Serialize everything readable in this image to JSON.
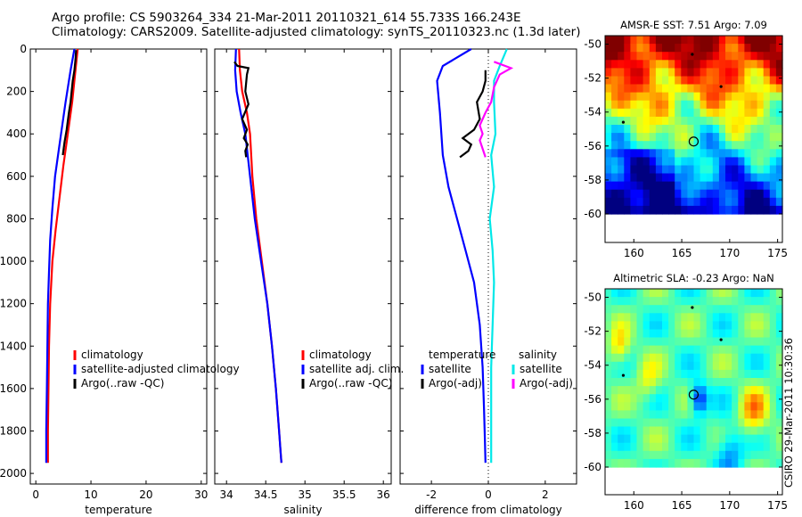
{
  "header": {
    "line1": "Argo profile: CS 5903264_334 21-Mar-2011 20110321_614 55.733S 166.243E",
    "line2": "Climatology: CARS2009. Satellite-adjusted climatology: synTS_20110323.nc (1.3d later)"
  },
  "side_text": "CSIRO 29-Mar-2011 10:30:36",
  "chart_data": [
    {
      "type": "line",
      "id": "temperature",
      "xlabel": "temperature",
      "xlim": [
        -1,
        31
      ],
      "ylim": [
        2050,
        0
      ],
      "xticks": [
        0,
        10,
        20,
        30
      ],
      "yticks": [
        0,
        200,
        400,
        600,
        800,
        1000,
        1200,
        1400,
        1600,
        1800,
        2000
      ],
      "legend": [
        "climatology",
        "satellite-adjusted climatology",
        "Argo(..raw -QC)"
      ],
      "series": [
        {
          "name": "climatology",
          "color": "#ff0000",
          "x": [
            7.6,
            7.2,
            6.6,
            5.8,
            5.0,
            4.3,
            3.6,
            3.0,
            2.6,
            2.4,
            2.3,
            2.2,
            2.2
          ],
          "y": [
            0,
            100,
            250,
            400,
            550,
            700,
            850,
            1000,
            1200,
            1400,
            1600,
            1800,
            1950
          ]
        },
        {
          "name": "satellite-adjusted climatology",
          "color": "#0000ff",
          "x": [
            7.0,
            6.3,
            5.4,
            4.3,
            3.5,
            3.0,
            2.6,
            2.4,
            2.2,
            2.1,
            2.0,
            1.9,
            1.9
          ],
          "y": [
            0,
            100,
            250,
            450,
            600,
            750,
            900,
            1050,
            1200,
            1400,
            1600,
            1800,
            1950
          ]
        },
        {
          "name": "Argo(..raw -QC)",
          "color": "#000000",
          "x": [
            7.3,
            7.2,
            7.0,
            6.7,
            6.3,
            6.0,
            5.6,
            5.2,
            4.9
          ],
          "y": [
            5,
            50,
            100,
            150,
            250,
            300,
            380,
            440,
            500
          ]
        }
      ]
    },
    {
      "type": "line",
      "id": "salinity",
      "xlabel": "salinity",
      "xlim": [
        33.85,
        36.1
      ],
      "ylim": [
        2050,
        0
      ],
      "xticks": [
        34,
        34.5,
        35,
        35.5,
        36
      ],
      "legend": [
        "climatology",
        "satellite adj. clim.",
        "Argo(..raw -QC)"
      ],
      "series": [
        {
          "name": "climatology",
          "color": "#ff0000",
          "x": [
            34.16,
            34.17,
            34.2,
            34.26,
            34.3,
            34.33,
            34.38,
            34.45,
            34.52,
            34.58,
            34.63,
            34.67,
            34.69,
            34.7
          ],
          "y": [
            0,
            100,
            200,
            300,
            400,
            600,
            800,
            1000,
            1200,
            1400,
            1600,
            1800,
            1900,
            1950
          ]
        },
        {
          "name": "satellite adj. clim.",
          "color": "#0000ff",
          "x": [
            34.12,
            34.11,
            34.13,
            34.18,
            34.24,
            34.3,
            34.36,
            34.44,
            34.52,
            34.58,
            34.63,
            34.67,
            34.69,
            34.7
          ],
          "y": [
            0,
            100,
            200,
            300,
            400,
            600,
            800,
            1000,
            1200,
            1400,
            1600,
            1800,
            1900,
            1950
          ]
        },
        {
          "name": "Argo(..raw -QC)",
          "color": "#000000",
          "x": [
            34.1,
            34.14,
            34.28,
            34.26,
            34.24,
            34.28,
            34.2,
            34.26,
            34.22,
            34.27,
            34.24,
            34.25
          ],
          "y": [
            60,
            80,
            90,
            120,
            200,
            260,
            330,
            380,
            420,
            450,
            480,
            510
          ]
        }
      ]
    },
    {
      "type": "line",
      "id": "difference",
      "xlabel": "difference from climatology",
      "xlim": [
        -3.1,
        3.1
      ],
      "ylim": [
        2050,
        0
      ],
      "xticks": [
        -2,
        0,
        2
      ],
      "legend": [
        "temperature",
        "satellite",
        "Argo(-adj)",
        "salinity",
        "satellite",
        "Argo(-adj)"
      ],
      "series": [
        {
          "name": "temperature satellite",
          "color": "#0000ff",
          "x": [
            -0.6,
            -1.6,
            -1.8,
            -1.7,
            -1.6,
            -1.4,
            -1.1,
            -0.8,
            -0.5,
            -0.3,
            -0.2,
            -0.15,
            -0.12,
            -0.1
          ],
          "y": [
            0,
            80,
            150,
            300,
            500,
            650,
            800,
            950,
            1100,
            1300,
            1500,
            1700,
            1850,
            1950
          ]
        },
        {
          "name": "temperature Argo(-adj)",
          "color": "#000000",
          "x": [
            -0.1,
            -0.1,
            -0.2,
            -0.4,
            -0.3,
            -0.5,
            -0.9,
            -0.6,
            -0.7,
            -1.0
          ],
          "y": [
            100,
            150,
            200,
            250,
            330,
            380,
            420,
            450,
            480,
            510
          ]
        },
        {
          "name": "salinity satellite",
          "color": "#00e8e8",
          "x": [
            0.65,
            0.4,
            0.2,
            0.2,
            0.25,
            0.1,
            0.2,
            0.05,
            0.15,
            0.2,
            0.15,
            0.1,
            0.1,
            0.1
          ],
          "y": [
            0,
            80,
            150,
            250,
            400,
            500,
            650,
            800,
            950,
            1100,
            1300,
            1500,
            1700,
            1950
          ]
        },
        {
          "name": "salinity Argo(-adj)",
          "color": "#ff00ff",
          "x": [
            0.2,
            0.8,
            0.4,
            0.2,
            0.1,
            -0.1,
            -0.3,
            -0.2,
            -0.3,
            -0.2,
            -0.1
          ],
          "y": [
            60,
            90,
            120,
            180,
            250,
            300,
            360,
            400,
            430,
            470,
            510
          ]
        }
      ]
    },
    {
      "type": "heatmap",
      "id": "sst_map",
      "title": "AMSR-E SST: 7.51 Argo: 7.09",
      "xlim": [
        157,
        175.5
      ],
      "ylim": [
        -60,
        -49.5
      ],
      "xticks": [
        160,
        165,
        170,
        175
      ],
      "yticks": [
        -50,
        -52,
        -54,
        -56,
        -58,
        -60
      ],
      "marker": [
        166.243,
        -55.733
      ]
    },
    {
      "type": "heatmap",
      "id": "sla_map",
      "title": "Altimetric SLA: -0.23 Argo: NaN",
      "xlim": [
        157,
        175.5
      ],
      "ylim": [
        -60,
        -49.5
      ],
      "xticks": [
        160,
        165,
        170,
        175
      ],
      "yticks": [
        -50,
        -52,
        -54,
        -56,
        -58,
        -60
      ],
      "marker": [
        166.243,
        -55.733
      ]
    }
  ]
}
